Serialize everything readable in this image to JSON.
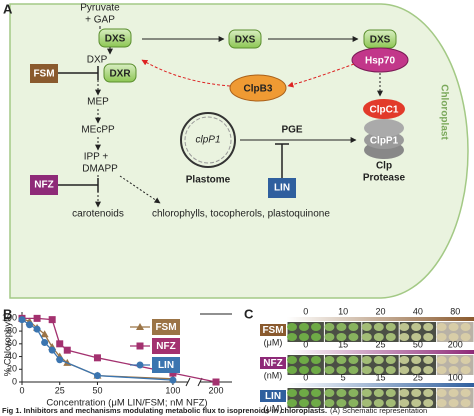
{
  "panel_a": {
    "label": "A",
    "pyruvate": "Pyruvate",
    "gap": "+ GAP",
    "dxs_1": "DXS",
    "dxp": "DXP",
    "dxr": "DXR",
    "fsm": "FSM",
    "mep": "MEP",
    "mecpp": "MEcPP",
    "ipp": "IPP +",
    "dmapp": "DMAPP",
    "nfz": "NFZ",
    "carotenoids": "carotenoids",
    "products": "chlorophylls, tocopherols, plastoquinone",
    "dxs_2": "DXS",
    "dxs_3": "DXS",
    "hsp70": "Hsp70",
    "clpb3": "ClpB3",
    "clpc1": "ClpC1",
    "clpp1": "ClpP1",
    "clp": "Clp",
    "protease": "Protease",
    "clpp1_gene": "clpP1",
    "plastome": "Plastome",
    "pge": "PGE",
    "lin": "LIN",
    "chloroplast": "Chloroplast"
  },
  "chart_data": {
    "type": "line",
    "label": "B",
    "ylabel": "% Chlorophyll",
    "xlabel": "Concentration (μM LIN/FSM; nM NFZ)",
    "ylim": [
      0,
      110
    ],
    "yticks": [
      0,
      20,
      40,
      60,
      80,
      100
    ],
    "xlim": [
      0,
      210
    ],
    "xbreak": [
      110,
      190
    ],
    "xticks": [
      0,
      25,
      50,
      100,
      200
    ],
    "series": [
      {
        "name": "FSM",
        "color": "#9b7446",
        "marker": "triangle",
        "x": [
          0,
          5,
          10,
          15,
          20,
          25,
          30,
          50,
          100
        ],
        "values": [
          100,
          95,
          85,
          75,
          55,
          40,
          30,
          10,
          5
        ]
      },
      {
        "name": "NFZ",
        "color": "#a3316f",
        "marker": "square",
        "x": [
          0,
          10,
          20,
          25,
          30,
          50,
          100,
          200
        ],
        "values": [
          100,
          100,
          98,
          60,
          50,
          38,
          14,
          0
        ]
      },
      {
        "name": "LIN",
        "color": "#3b75b0",
        "marker": "circle",
        "x": [
          0,
          5,
          10,
          15,
          20,
          25,
          50,
          100
        ],
        "values": [
          98,
          90,
          83,
          62,
          50,
          35,
          10,
          3
        ]
      }
    ]
  },
  "panel_c": {
    "label": "C",
    "rows": [
      {
        "inhibitor": "FSM",
        "unit": "(μM)",
        "color": "#8a5a2e",
        "concentrations": [
          0,
          10,
          20,
          40,
          80
        ]
      },
      {
        "inhibitor": "NFZ",
        "unit": "(nM)",
        "color": "#8e2a78",
        "concentrations": [
          0,
          15,
          25,
          50,
          200
        ]
      },
      {
        "inhibitor": "LIN",
        "unit": "(μM)",
        "color": "#2f5f9e",
        "concentrations": [
          0,
          5,
          15,
          25,
          100
        ]
      }
    ]
  },
  "caption": {
    "title": "Fig 1. Inhibitors and mechanisms modulating metabolic flux to isoprenoids in chloroplasts.",
    "text": "(A) Schematic representation"
  }
}
